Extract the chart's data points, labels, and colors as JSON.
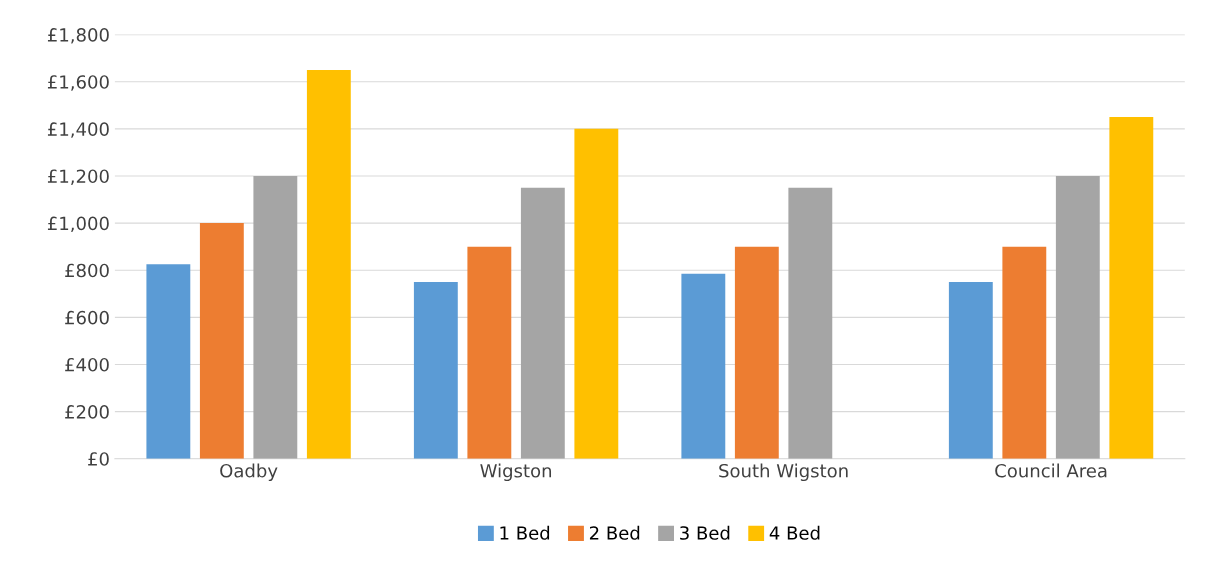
{
  "chart_data": {
    "type": "bar",
    "categories": [
      "Oadby",
      "Wigston",
      "South Wigston",
      "Council Area"
    ],
    "series": [
      {
        "name": "1 Bed",
        "color": "#5b9bd5",
        "values": [
          825,
          750,
          785,
          750
        ]
      },
      {
        "name": "2 Bed",
        "color": "#ed7d31",
        "values": [
          1000,
          900,
          900,
          900
        ]
      },
      {
        "name": "3 Bed",
        "color": "#a5a5a5",
        "values": [
          1200,
          1150,
          1150,
          1200
        ]
      },
      {
        "name": "4 Bed",
        "color": "#ffc000",
        "values": [
          1650,
          1400,
          null,
          1450
        ]
      }
    ],
    "ylim": [
      0,
      1800
    ],
    "yticks": [
      {
        "value": 0,
        "label": "£0"
      },
      {
        "value": 200,
        "label": "£200"
      },
      {
        "value": 400,
        "label": "£400"
      },
      {
        "value": 600,
        "label": "£600"
      },
      {
        "value": 800,
        "label": "£800"
      },
      {
        "value": 1000,
        "label": "£1,000"
      },
      {
        "value": 1200,
        "label": "£1,200"
      },
      {
        "value": 1400,
        "label": "£1,400"
      },
      {
        "value": 1600,
        "label": "£1,600"
      },
      {
        "value": 1800,
        "label": "£1,800"
      }
    ],
    "grid": "y",
    "legend": "bottom"
  }
}
